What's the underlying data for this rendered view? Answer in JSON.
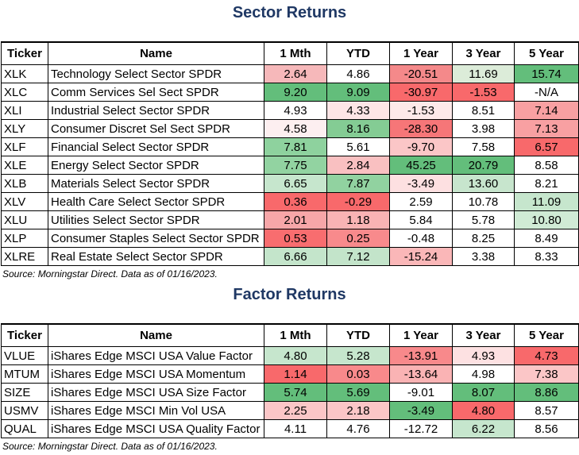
{
  "sector": {
    "title": "Sector Returns",
    "headers": [
      "Ticker",
      "Name",
      "1 Mth",
      "YTD",
      "1 Year",
      "3 Year",
      "5 Year"
    ],
    "rows": [
      {
        "ticker": "XLK",
        "name": "Technology Select Sector SPDR",
        "cells": [
          {
            "v": "2.64",
            "bg": "#f6b8ba"
          },
          {
            "v": "4.86",
            "bg": "#ffffff"
          },
          {
            "v": "-20.51",
            "bg": "#f4898a"
          },
          {
            "v": "11.69",
            "bg": "#dcecd9"
          },
          {
            "v": "15.74",
            "bg": "#63be7b"
          }
        ]
      },
      {
        "ticker": "XLC",
        "name": "Comm Services Sel Sect SPDR",
        "cells": [
          {
            "v": "9.20",
            "bg": "#63be7b"
          },
          {
            "v": "9.09",
            "bg": "#63be7b"
          },
          {
            "v": "-30.97",
            "bg": "#f8696b"
          },
          {
            "v": "-1.53",
            "bg": "#f8696b"
          },
          {
            "v": "-N/A",
            "bg": "#ffffff"
          }
        ]
      },
      {
        "ticker": "XLI",
        "name": "Industrial Select Sector SPDR",
        "cells": [
          {
            "v": "4.93",
            "bg": "#ffffff"
          },
          {
            "v": "4.33",
            "bg": "#fde5e6"
          },
          {
            "v": "-1.53",
            "bg": "#fde9e9"
          },
          {
            "v": "8.51",
            "bg": "#ffffff"
          },
          {
            "v": "7.14",
            "bg": "#f8a0a2"
          }
        ]
      },
      {
        "ticker": "XLY",
        "name": "Consumer Discret Sel Sect SPDR",
        "cells": [
          {
            "v": "4.58",
            "bg": "#fdeff0"
          },
          {
            "v": "8.16",
            "bg": "#84cc94"
          },
          {
            "v": "-28.30",
            "bg": "#f67678"
          },
          {
            "v": "3.98",
            "bg": "#ffffff"
          },
          {
            "v": "7.13",
            "bg": "#f8a0a2"
          }
        ]
      },
      {
        "ticker": "XLF",
        "name": "Financial Select Sector SPDR",
        "cells": [
          {
            "v": "7.81",
            "bg": "#8ed29e"
          },
          {
            "v": "5.61",
            "bg": "#ffffff"
          },
          {
            "v": "-9.70",
            "bg": "#fbc6c7"
          },
          {
            "v": "7.58",
            "bg": "#ffffff"
          },
          {
            "v": "6.57",
            "bg": "#f8696b"
          }
        ]
      },
      {
        "ticker": "XLE",
        "name": "Energy Select Sector SPDR",
        "cells": [
          {
            "v": "7.75",
            "bg": "#92d3a1"
          },
          {
            "v": "2.84",
            "bg": "#f9c0c1"
          },
          {
            "v": "45.25",
            "bg": "#63be7b"
          },
          {
            "v": "20.79",
            "bg": "#63be7b"
          },
          {
            "v": "8.58",
            "bg": "#ffffff"
          }
        ]
      },
      {
        "ticker": "XLB",
        "name": "Materials Select Sector SPDR",
        "cells": [
          {
            "v": "6.65",
            "bg": "#c6e6cd"
          },
          {
            "v": "7.87",
            "bg": "#91d2a0"
          },
          {
            "v": "-3.49",
            "bg": "#fde0e1"
          },
          {
            "v": "13.60",
            "bg": "#c7e5cd"
          },
          {
            "v": "8.21",
            "bg": "#ffffff"
          }
        ]
      },
      {
        "ticker": "XLV",
        "name": "Health Care Select Sector SPDR",
        "cells": [
          {
            "v": "0.36",
            "bg": "#f8696b"
          },
          {
            "v": "-0.29",
            "bg": "#f8696b"
          },
          {
            "v": "2.59",
            "bg": "#ffffff"
          },
          {
            "v": "10.78",
            "bg": "#ffffff"
          },
          {
            "v": "11.09",
            "bg": "#c6e6cd"
          }
        ]
      },
      {
        "ticker": "XLU",
        "name": "Utilities Select Sector SPDR",
        "cells": [
          {
            "v": "2.01",
            "bg": "#f7a6a8"
          },
          {
            "v": "1.18",
            "bg": "#f9b3b4"
          },
          {
            "v": "5.84",
            "bg": "#ffffff"
          },
          {
            "v": "5.78",
            "bg": "#ffffff"
          },
          {
            "v": "10.80",
            "bg": "#d0ebd5"
          }
        ]
      },
      {
        "ticker": "XLP",
        "name": "Consumer Staples Select Sector SPDR",
        "cells": [
          {
            "v": "0.53",
            "bg": "#f86d6f"
          },
          {
            "v": "0.25",
            "bg": "#f88a8c"
          },
          {
            "v": "-0.48",
            "bg": "#ffffff"
          },
          {
            "v": "8.25",
            "bg": "#ffffff"
          },
          {
            "v": "8.49",
            "bg": "#ffffff"
          }
        ]
      },
      {
        "ticker": "XLRE",
        "name": "Real Estate Select Sector SPDR",
        "cells": [
          {
            "v": "6.66",
            "bg": "#c4e5cb"
          },
          {
            "v": "7.12",
            "bg": "#c3e4ca"
          },
          {
            "v": "-15.24",
            "bg": "#fab7b8"
          },
          {
            "v": "3.38",
            "bg": "#ffffff"
          },
          {
            "v": "8.33",
            "bg": "#ffffff"
          }
        ]
      }
    ],
    "source": "Source: Morningstar Direct. Data as of 01/16/2023."
  },
  "factor": {
    "title": "Factor Returns",
    "headers": [
      "Ticker",
      "Name",
      "1 Mth",
      "YTD",
      "1 Year",
      "3 Year",
      "5 Year"
    ],
    "rows": [
      {
        "ticker": "VLUE",
        "name": "iShares Edge MSCI USA Value Factor",
        "cells": [
          {
            "v": "4.80",
            "bg": "#c6e6cd"
          },
          {
            "v": "5.28",
            "bg": "#c6e6cd"
          },
          {
            "v": "-13.91",
            "bg": "#f8898b"
          },
          {
            "v": "4.93",
            "bg": "#fde1e2"
          },
          {
            "v": "4.73",
            "bg": "#f8696b"
          }
        ]
      },
      {
        "ticker": "MTUM",
        "name": "iShares Edge MSCI USA Momentum",
        "cells": [
          {
            "v": "1.14",
            "bg": "#f8696b"
          },
          {
            "v": "0.03",
            "bg": "#f8898b"
          },
          {
            "v": "-13.64",
            "bg": "#fab3b4"
          },
          {
            "v": "4.98",
            "bg": "#ffffff"
          },
          {
            "v": "7.38",
            "bg": "#fbc6c7"
          }
        ]
      },
      {
        "ticker": "SIZE",
        "name": "iShares Edge MSCI USA Size Factor",
        "cells": [
          {
            "v": "5.74",
            "bg": "#63be7b"
          },
          {
            "v": "5.69",
            "bg": "#63be7b"
          },
          {
            "v": "-9.01",
            "bg": "#ffffff"
          },
          {
            "v": "8.07",
            "bg": "#63be7b"
          },
          {
            "v": "8.86",
            "bg": "#63be7b"
          }
        ]
      },
      {
        "ticker": "USMV",
        "name": "iShares Edge MSCI Min Vol USA",
        "cells": [
          {
            "v": "2.25",
            "bg": "#fbc6c7"
          },
          {
            "v": "2.18",
            "bg": "#fbc6c7"
          },
          {
            "v": "-3.49",
            "bg": "#63be7b"
          },
          {
            "v": "4.80",
            "bg": "#f8696b"
          },
          {
            "v": "8.57",
            "bg": "#ffffff"
          }
        ]
      },
      {
        "ticker": "QUAL",
        "name": "iShares Edge MSCI USA Quality Factor",
        "cells": [
          {
            "v": "4.11",
            "bg": "#ffffff"
          },
          {
            "v": "4.76",
            "bg": "#ffffff"
          },
          {
            "v": "-12.72",
            "bg": "#ffffff"
          },
          {
            "v": "6.22",
            "bg": "#c6e6cd"
          },
          {
            "v": "8.56",
            "bg": "#ffffff"
          }
        ]
      }
    ],
    "source": "Source: Morningstar Direct. Data as of 01/16/2023."
  }
}
